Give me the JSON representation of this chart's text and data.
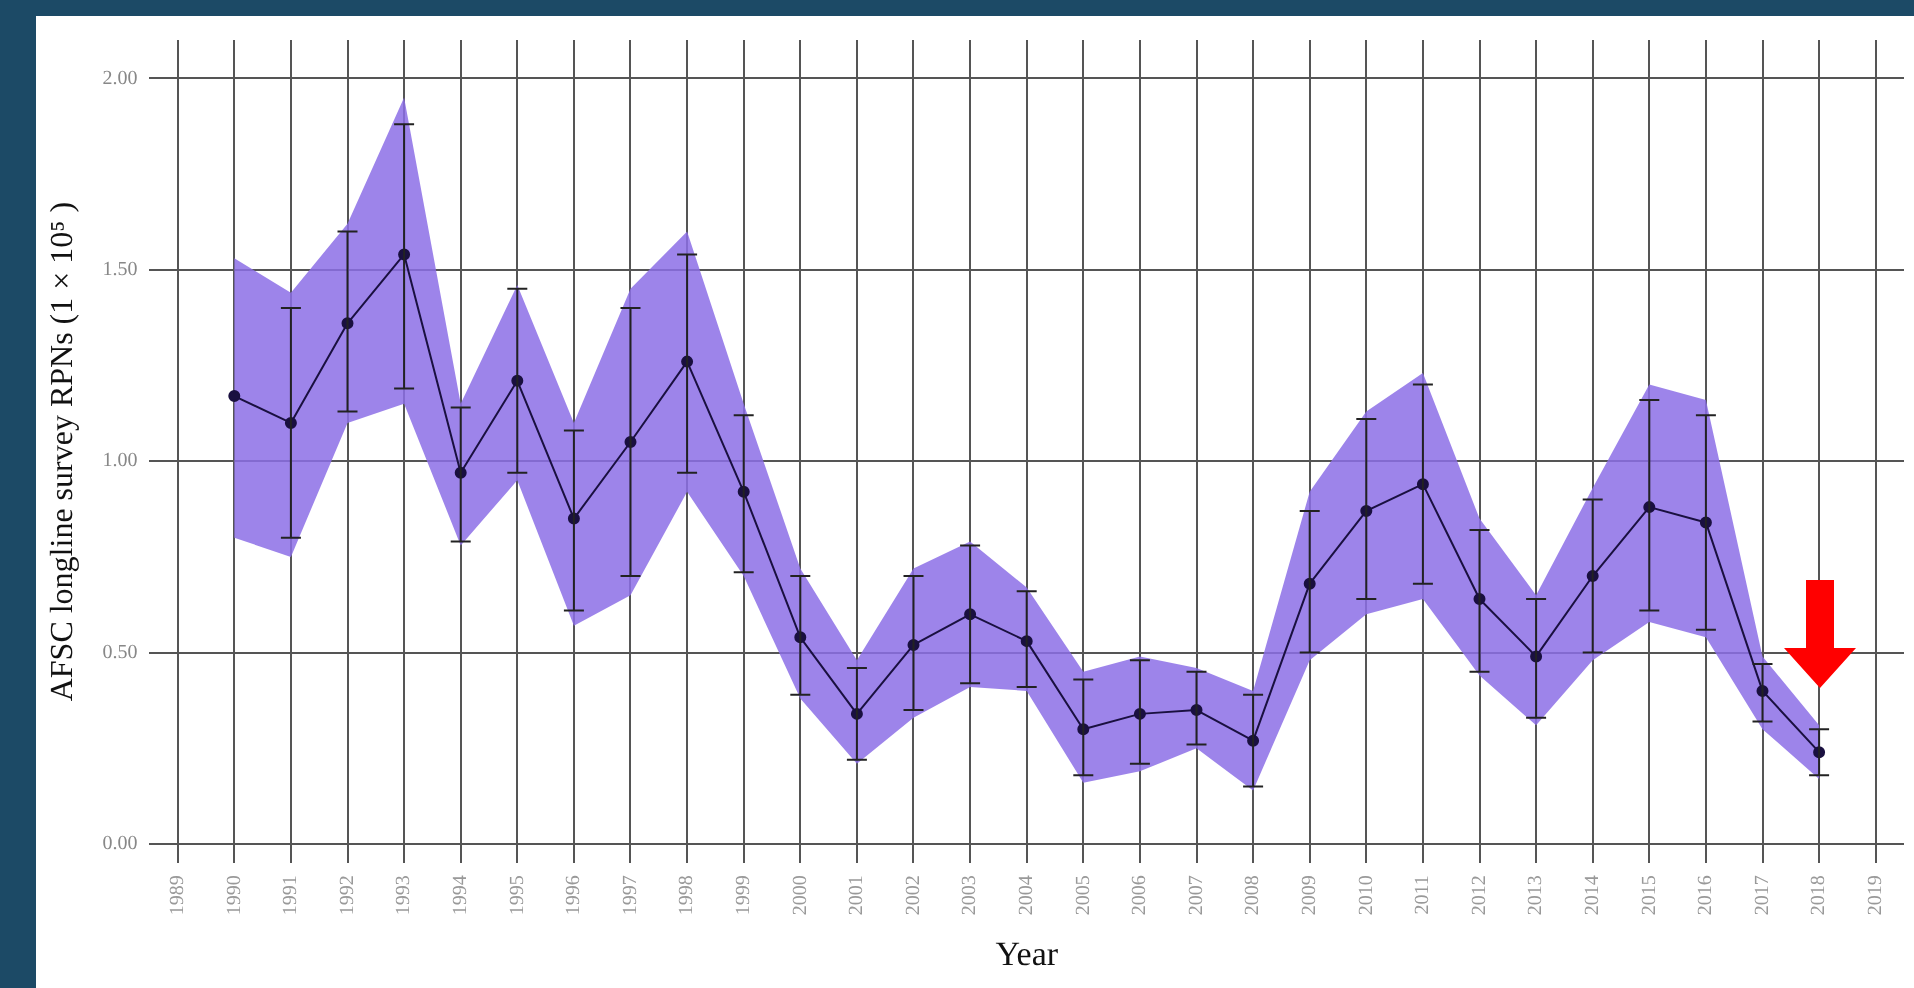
{
  "chart_data": {
    "type": "line",
    "xlabel": "Year",
    "ylabel": "AFSC longline survey RPNs (1 × 10⁵ )",
    "x": [
      1990,
      1991,
      1992,
      1993,
      1994,
      1995,
      1996,
      1997,
      1998,
      1999,
      2000,
      2001,
      2002,
      2003,
      2004,
      2005,
      2006,
      2007,
      2008,
      2009,
      2010,
      2011,
      2012,
      2013,
      2014,
      2015,
      2016,
      2017,
      2018
    ],
    "series": [
      {
        "color": "#1a1040",
        "values": [
          1.17,
          1.1,
          1.36,
          1.54,
          0.97,
          1.21,
          0.85,
          1.05,
          1.26,
          0.92,
          0.54,
          0.34,
          0.52,
          0.6,
          0.53,
          0.3,
          0.34,
          0.35,
          0.27,
          0.68,
          0.87,
          0.94,
          0.64,
          0.49,
          0.7,
          0.88,
          0.84,
          0.4,
          0.24
        ],
        "errors": [
          null,
          [
            0.8,
            1.4
          ],
          [
            1.13,
            1.6
          ],
          [
            1.19,
            1.88
          ],
          [
            0.79,
            1.14
          ],
          [
            0.97,
            1.45
          ],
          [
            0.61,
            1.08
          ],
          [
            0.7,
            1.4
          ],
          [
            0.97,
            1.54
          ],
          [
            0.71,
            1.12
          ],
          [
            0.39,
            0.7
          ],
          [
            0.22,
            0.46
          ],
          [
            0.35,
            0.7
          ],
          [
            0.42,
            0.78
          ],
          [
            0.41,
            0.66
          ],
          [
            0.18,
            0.43
          ],
          [
            0.21,
            0.48
          ],
          [
            0.26,
            0.45
          ],
          [
            0.15,
            0.39
          ],
          [
            0.5,
            0.87
          ],
          [
            0.64,
            1.11
          ],
          [
            0.68,
            1.2
          ],
          [
            0.45,
            0.82
          ],
          [
            0.33,
            0.64
          ],
          [
            0.5,
            0.9
          ],
          [
            0.61,
            1.16
          ],
          [
            0.56,
            1.12
          ],
          [
            0.32,
            0.47
          ],
          [
            0.18,
            0.3
          ]
        ],
        "lower": [
          0.8,
          0.75,
          1.1,
          1.15,
          0.78,
          0.95,
          0.57,
          0.65,
          0.92,
          0.7,
          0.38,
          0.21,
          0.33,
          0.41,
          0.4,
          0.16,
          0.19,
          0.25,
          0.14,
          0.48,
          0.6,
          0.64,
          0.44,
          0.31,
          0.48,
          0.58,
          0.54,
          0.3,
          0.17
        ],
        "upper": [
          1.53,
          1.44,
          1.62,
          1.95,
          1.15,
          1.46,
          1.1,
          1.45,
          1.6,
          1.15,
          0.72,
          0.48,
          0.72,
          0.79,
          0.67,
          0.45,
          0.49,
          0.46,
          0.4,
          0.92,
          1.13,
          1.23,
          0.85,
          0.65,
          0.93,
          1.2,
          1.16,
          0.49,
          0.31
        ]
      }
    ],
    "xlim": [
      1988.5,
      2019.5
    ],
    "xticks": [
      1989,
      1990,
      1991,
      1992,
      1993,
      1994,
      1995,
      1996,
      1997,
      1998,
      1999,
      2000,
      2001,
      2002,
      2003,
      2004,
      2005,
      2006,
      2007,
      2008,
      2009,
      2010,
      2011,
      2012,
      2013,
      2014,
      2015,
      2016,
      2017,
      2018,
      2019
    ],
    "ylim": [
      -0.05,
      2.1
    ],
    "yticks": [
      {
        "value": 0,
        "label": "0.00"
      },
      {
        "value": 0.5,
        "label": "0.50"
      },
      {
        "value": 1,
        "label": "1.00"
      },
      {
        "value": 1.5,
        "label": "1.50"
      },
      {
        "value": 2,
        "label": "2.00"
      }
    ],
    "grid": true,
    "legend": false,
    "marker": "circle",
    "line_style": "solid"
  }
}
